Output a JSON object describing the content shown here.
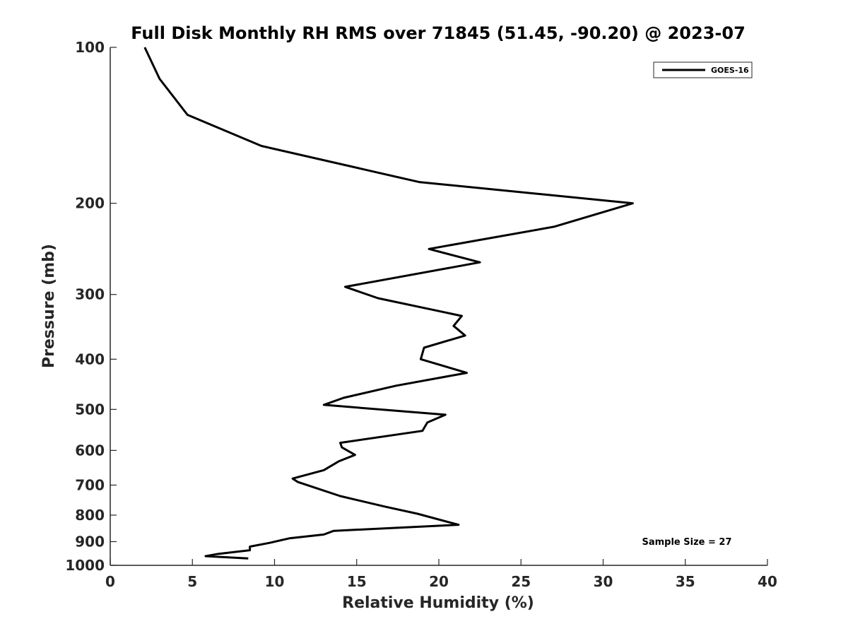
{
  "chart_data": {
    "type": "line",
    "title": "Full Disk Monthly RH RMS over 71845 (51.45, -90.20) @ 2023-07",
    "xlabel": "Relative Humidity (%)",
    "ylabel": "Pressure (mb)",
    "xlim": [
      0,
      40
    ],
    "ylim": [
      100,
      1000
    ],
    "y_scale": "log",
    "y_direction": "reversed",
    "x_ticks": [
      0,
      5,
      10,
      15,
      20,
      25,
      30,
      35,
      40
    ],
    "y_ticks": [
      100,
      200,
      300,
      400,
      500,
      600,
      700,
      800,
      900,
      1000
    ],
    "grid": false,
    "legend_position": "top-right",
    "annotation": "Sample Size = 27",
    "series": [
      {
        "name": "GOES-16",
        "color": "#000000",
        "x": [
          2.1,
          3.0,
          4.7,
          9.2,
          18.8,
          31.8,
          27.0,
          19.4,
          22.5,
          14.3,
          16.3,
          21.4,
          20.9,
          21.6,
          19.1,
          18.9,
          21.7,
          17.4,
          14.2,
          13.0,
          20.4,
          19.3,
          19.0,
          14.0,
          14.1,
          14.9,
          13.9,
          13.0,
          11.1,
          11.4,
          14.0,
          16.7,
          18.7,
          21.2,
          13.6,
          13.0,
          10.9,
          9.7,
          8.5,
          8.5,
          6.6,
          5.8,
          8.4
        ],
        "y": [
          100,
          115,
          135,
          155,
          182,
          200,
          222,
          245,
          260,
          290,
          305,
          330,
          345,
          360,
          380,
          400,
          425,
          450,
          475,
          490,
          512,
          530,
          550,
          580,
          592,
          612,
          630,
          655,
          680,
          690,
          735,
          770,
          795,
          835,
          858,
          872,
          887,
          905,
          920,
          935,
          950,
          960,
          970
        ]
      }
    ]
  }
}
